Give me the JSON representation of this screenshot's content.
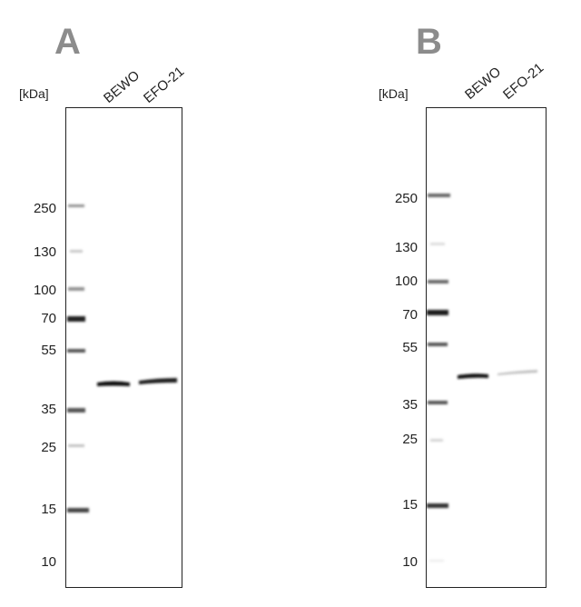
{
  "panels": [
    {
      "letter": "A",
      "unit_label": "[kDa]",
      "lanes": [
        "BEWO",
        "EFO-21"
      ],
      "markers": [
        "250",
        "130",
        "100",
        "70",
        "55",
        "35",
        "25",
        "15",
        "10"
      ]
    },
    {
      "letter": "B",
      "unit_label": "[kDa]",
      "lanes": [
        "BEWO",
        "EFO-21"
      ],
      "markers": [
        "250",
        "130",
        "100",
        "70",
        "55",
        "35",
        "25",
        "15",
        "10"
      ]
    }
  ],
  "colors": {
    "band_dark": "#111111",
    "ladder": "#6e6e6e",
    "letter": "#8c8c8c"
  }
}
